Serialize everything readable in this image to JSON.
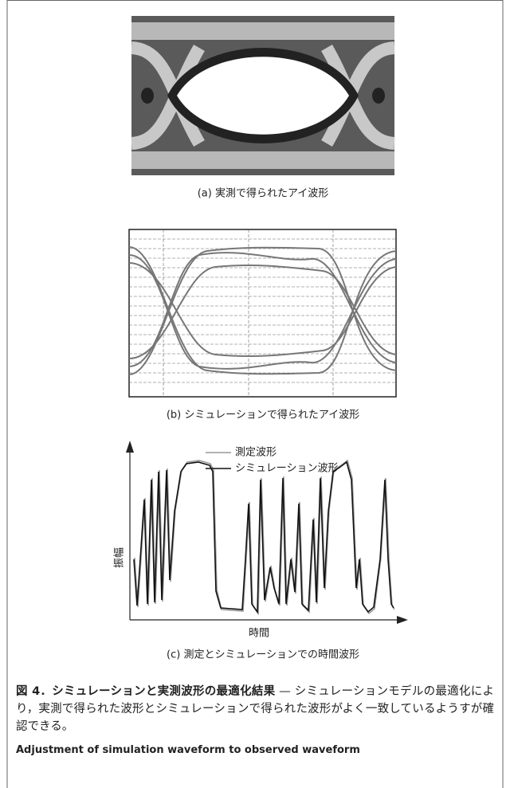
{
  "figure": {
    "panels": [
      {
        "caption": "(a) 実測で得られたアイ波形"
      },
      {
        "caption": "(b) シミュレーションで得られたアイ波形"
      },
      {
        "caption": "(c) 測定とシミュレーションでの時間波形",
        "legend": [
          "測定波形",
          "シミュレーション波形"
        ],
        "y_label": "振幅",
        "x_label": "時間"
      }
    ],
    "caption_label": "図 4．シミュレーションと実測波形の最適化結果",
    "caption_text": "— シミュレーションモデルの最適化により，実測で得られた波形とシミュレーションで得られた波形がよく一致しているようすが確認できる。",
    "english_caption": "Adjustment of simulation waveform to observed waveform"
  }
}
